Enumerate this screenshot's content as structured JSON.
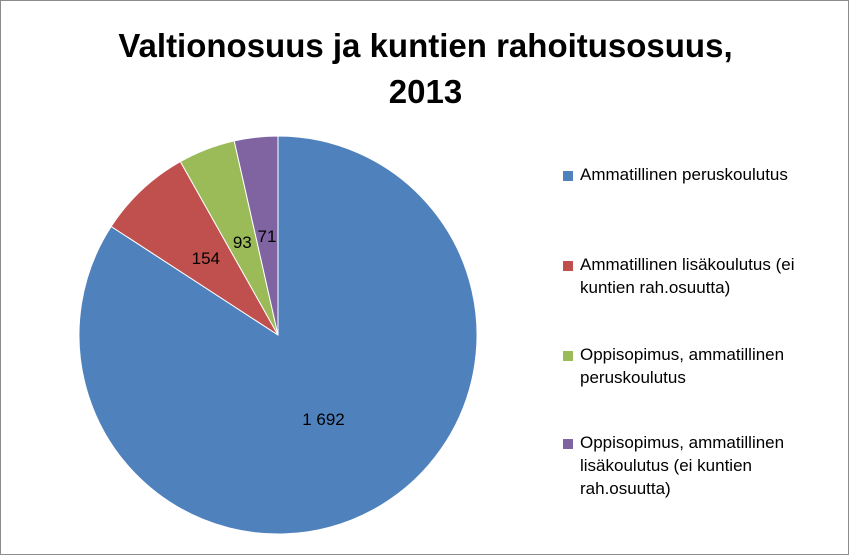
{
  "chart_data": {
    "type": "pie",
    "title_lines": [
      "Valtionosuus ja kuntien rahoitusosuus,",
      "2013"
    ],
    "categories": [
      "Ammatillinen peruskoulutus",
      "Ammatillinen lisäkoulutus (ei kuntien rah.osuutta)",
      "Oppisopimus, ammatillinen peruskoulutus",
      "Oppisopimus, ammatillinen lisäkoulutus (ei kuntien rah.osuutta)"
    ],
    "values": [
      1692,
      154,
      93,
      71
    ],
    "data_labels": [
      "1 692",
      "154",
      "93",
      "71"
    ],
    "colors": [
      "#4f81bd",
      "#c0504d",
      "#9bbb59",
      "#8064a2"
    ],
    "legend_position": "right",
    "start_angle": "12 o'clock",
    "direction": "clockwise"
  }
}
